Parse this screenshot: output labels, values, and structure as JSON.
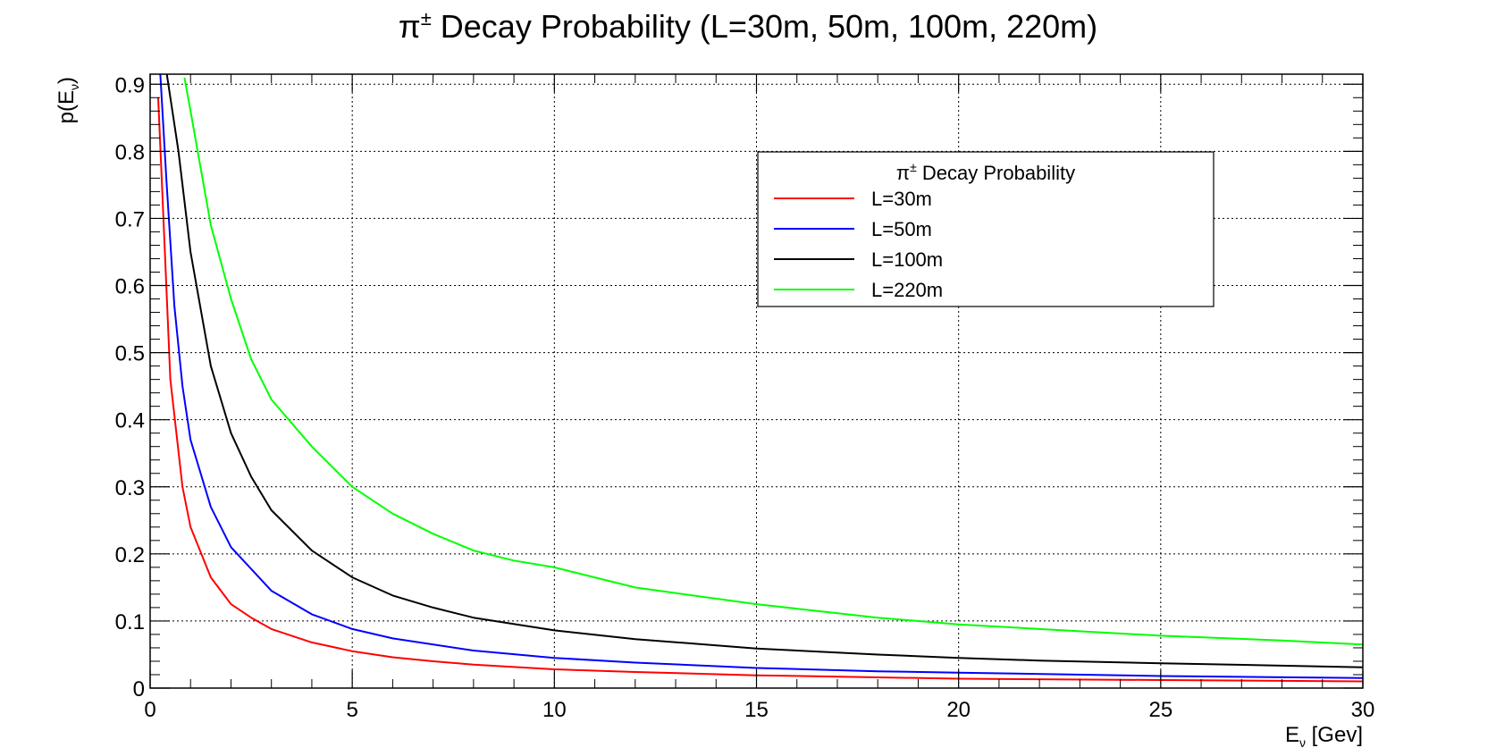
{
  "chart_data": {
    "type": "line",
    "title_main": "π",
    "title_sup": "±",
    "title_rest": " Decay Probability (L=30m, 50m, 100m, 220m)",
    "xlabel_main": "E",
    "xlabel_sub": "ν",
    "xlabel_rest": " [Gev]",
    "ylabel_main": "p(E",
    "ylabel_sub": "ν",
    "ylabel_rest": ")",
    "xlim": [
      0,
      30
    ],
    "ylim": [
      0,
      0.915
    ],
    "x_ticks": [
      0,
      5,
      10,
      15,
      20,
      25,
      30
    ],
    "x_tick_labels": [
      "0",
      "5",
      "10",
      "15",
      "20",
      "25",
      "30"
    ],
    "y_ticks": [
      0,
      0.1,
      0.2,
      0.3,
      0.4,
      0.5,
      0.6,
      0.7,
      0.8,
      0.9
    ],
    "y_tick_labels": [
      "0",
      "0.1",
      "0.2",
      "0.3",
      "0.4",
      "0.5",
      "0.6",
      "0.7",
      "0.8",
      "0.9"
    ],
    "grid": true,
    "legend": {
      "placement": "top-right",
      "title_main": "π",
      "title_sup": "±",
      "title_rest": " Decay Probability"
    },
    "series": [
      {
        "name": "L=30m",
        "color": "#ff0000",
        "x": [
          0.2,
          0.3,
          0.5,
          0.8,
          1.0,
          1.5,
          2,
          2.5,
          3,
          4,
          5,
          6,
          7,
          8,
          10,
          12,
          15,
          18,
          20,
          25,
          30
        ],
        "y": [
          0.88,
          0.74,
          0.46,
          0.3,
          0.24,
          0.165,
          0.125,
          0.105,
          0.088,
          0.068,
          0.055,
          0.046,
          0.04,
          0.035,
          0.028,
          0.024,
          0.019,
          0.016,
          0.014,
          0.012,
          0.01
        ]
      },
      {
        "name": "L=50m",
        "color": "#0000ff",
        "x": [
          0.2,
          0.4,
          0.6,
          0.8,
          1.0,
          1.5,
          2,
          3,
          4,
          5,
          6,
          8,
          10,
          12,
          15,
          18,
          20,
          25,
          30
        ],
        "y": [
          0.97,
          0.76,
          0.57,
          0.45,
          0.37,
          0.27,
          0.21,
          0.145,
          0.11,
          0.088,
          0.074,
          0.056,
          0.045,
          0.038,
          0.03,
          0.025,
          0.023,
          0.018,
          0.015
        ]
      },
      {
        "name": "L=100m",
        "color": "#000000",
        "x": [
          0.4,
          0.7,
          1.0,
          1.5,
          2,
          2.5,
          3,
          4,
          5,
          6,
          7,
          8,
          10,
          12,
          15,
          18,
          20,
          22,
          25,
          30
        ],
        "y": [
          0.92,
          0.8,
          0.65,
          0.48,
          0.38,
          0.315,
          0.265,
          0.205,
          0.165,
          0.138,
          0.12,
          0.105,
          0.086,
          0.073,
          0.059,
          0.05,
          0.045,
          0.041,
          0.037,
          0.031
        ]
      },
      {
        "name": "L=220m",
        "color": "#00ff00",
        "x": [
          0.85,
          1.0,
          1.5,
          2,
          2.5,
          3,
          4,
          5,
          6,
          7,
          8,
          9,
          10,
          12,
          15,
          18,
          20,
          22,
          25,
          28,
          30
        ],
        "y": [
          0.91,
          0.86,
          0.69,
          0.58,
          0.49,
          0.43,
          0.36,
          0.3,
          0.26,
          0.23,
          0.205,
          0.19,
          0.18,
          0.15,
          0.125,
          0.105,
          0.095,
          0.088,
          0.078,
          0.071,
          0.065
        ]
      }
    ]
  }
}
